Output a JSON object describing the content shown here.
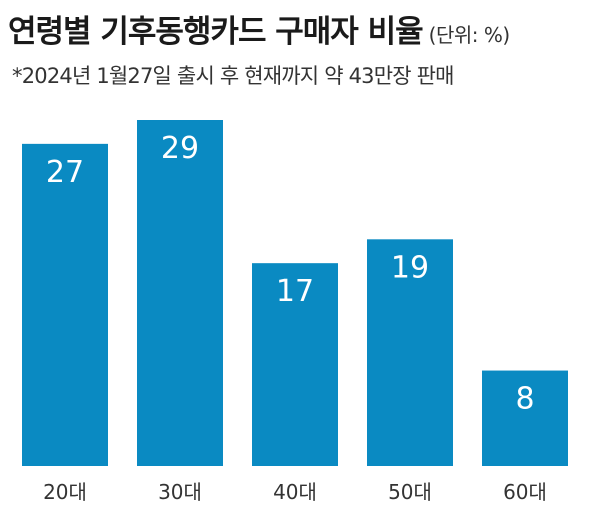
{
  "header": {
    "title": "연령별 기후동행카드 구매자 비율",
    "unit": "(단위: %)",
    "subtitle": "*2024년 1월27일 출시 후 현재까지 약 43만장 판매"
  },
  "colors": {
    "bar": "#0a8ac2"
  },
  "chart_data": {
    "type": "bar",
    "title": "연령별 기후동행카드 구매자 비율",
    "categories": [
      "20대",
      "30대",
      "40대",
      "50대",
      "60대"
    ],
    "values": [
      27,
      29,
      17,
      19,
      8
    ],
    "xlabel": "",
    "ylabel": "",
    "unit": "%",
    "ylim": [
      0,
      30
    ],
    "grid": false,
    "legend": "none"
  }
}
